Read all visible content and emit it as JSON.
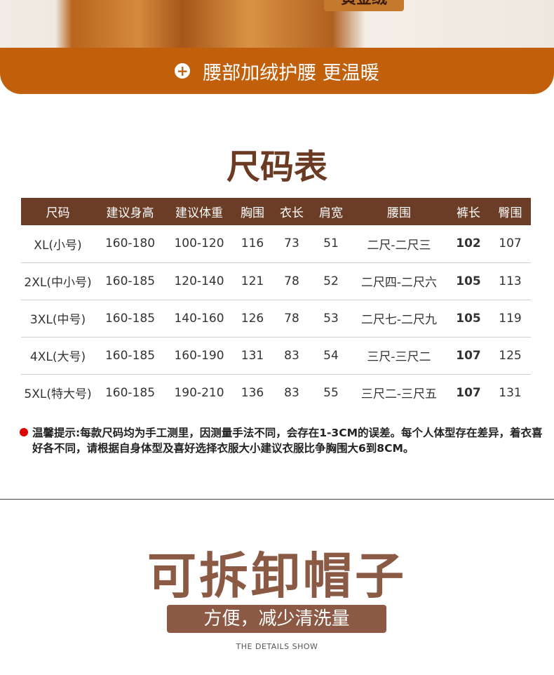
{
  "badge": "黄金绒",
  "banner": {
    "icon": "plus-circle-icon",
    "text": "腰部加绒护腰 更温暖",
    "color": "#c25f0b"
  },
  "size_chart": {
    "title": "尺码表",
    "headers": [
      "尺码",
      "建议身高",
      "建议体重",
      "胸围",
      "衣长",
      "肩宽",
      "腰围",
      "裤长",
      "臀围"
    ],
    "rows": [
      [
        "XL(小号)",
        "160-180",
        "100-120",
        "116",
        "73",
        "51",
        "二尺-二尺三",
        "102",
        "107"
      ],
      [
        "2XL(中小号)",
        "160-185",
        "120-140",
        "121",
        "78",
        "52",
        "二尺四-二尺六",
        "105",
        "113"
      ],
      [
        "3XL(中号)",
        "160-185",
        "140-160",
        "126",
        "78",
        "53",
        "二尺七-二尺九",
        "105",
        "119"
      ],
      [
        "4XL(大号)",
        "160-185",
        "160-190",
        "131",
        "83",
        "54",
        "三尺-三尺二",
        "107",
        "125"
      ],
      [
        "5XL(特大号)",
        "160-185",
        "190-210",
        "136",
        "83",
        "55",
        "三尺二-三尺五",
        "107",
        "131"
      ]
    ],
    "note": "温馨提示:每款尺码均为手工测里，因测量手法不同，会存在1-3CM的误差。每个人体型存在差异，着衣喜好各不同，请根据自身体型及喜好选择衣服大小建议衣服比争胸围大6到8CM。"
  },
  "section2": {
    "title": "可拆卸帽子",
    "subtitle": "方便，减少清洗量",
    "caption": "THE DETAILS SHOW"
  }
}
